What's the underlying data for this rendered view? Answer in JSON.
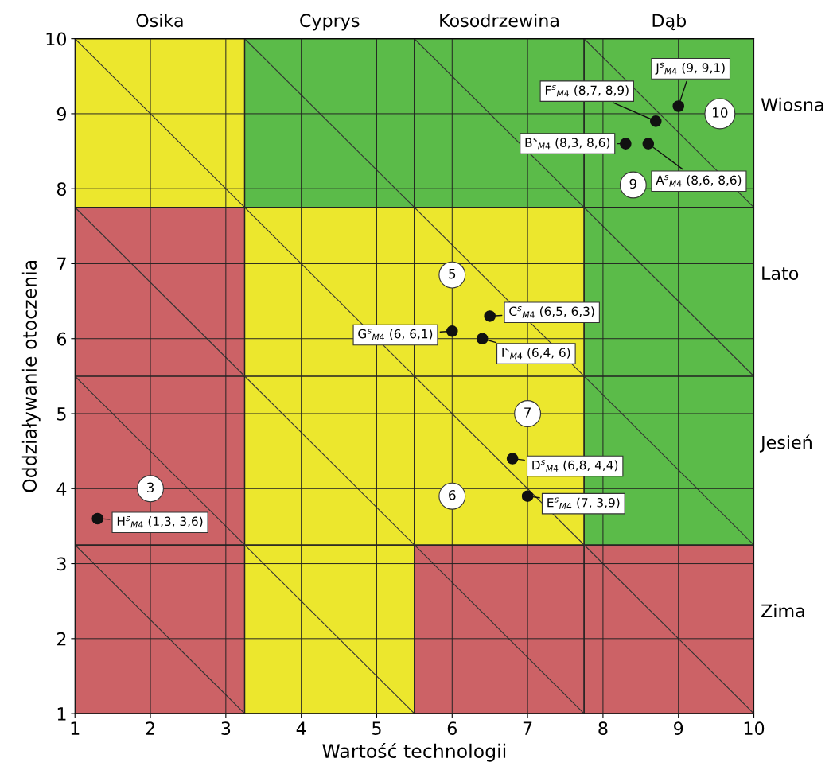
{
  "chart_data": {
    "type": "scatter",
    "xlabel": "Wartość technologii",
    "ylabel": "Oddziaływanie otoczenia",
    "xlim": [
      1,
      10
    ],
    "ylim": [
      1,
      10
    ],
    "xticks": [
      1,
      2,
      3,
      4,
      5,
      6,
      7,
      8,
      9,
      10
    ],
    "yticks": [
      1,
      2,
      3,
      4,
      5,
      6,
      7,
      8,
      9,
      10
    ],
    "grid": true,
    "legend": false,
    "series": [
      {
        "type": "line",
        "color": "#333333",
        "x": [
          1,
          3.25
        ],
        "values": [
          3.25,
          1
        ]
      },
      {
        "type": "line",
        "color": "#333333",
        "x": [
          1,
          5.5
        ],
        "values": [
          5.5,
          1
        ]
      },
      {
        "type": "line",
        "color": "#333333",
        "x": [
          1,
          7.75
        ],
        "values": [
          7.75,
          1
        ]
      },
      {
        "type": "line",
        "color": "#333333",
        "x": [
          1,
          10
        ],
        "values": [
          10,
          1
        ]
      },
      {
        "type": "line",
        "color": "#333333",
        "x": [
          3.25,
          10
        ],
        "values": [
          10,
          3.25
        ]
      },
      {
        "type": "line",
        "color": "#333333",
        "x": [
          5.5,
          10
        ],
        "values": [
          10,
          5.5
        ]
      },
      {
        "type": "line",
        "color": "#333333",
        "x": [
          7.75,
          10
        ],
        "values": [
          10,
          7.75
        ]
      },
      {
        "color": "#111111",
        "marker": "circle",
        "x": [
          1.3,
          6,
          6.4,
          6.5,
          6.8,
          7,
          8.3,
          8.6,
          8.7,
          9
        ],
        "values": [
          3.6,
          6.1,
          6,
          6.3,
          4.4,
          3.9,
          8.6,
          8.6,
          8.9,
          9.1
        ]
      }
    ],
    "annotations": [
      "Osika",
      "Cyprys",
      "Kosodrzewina",
      "Dąb",
      "Wiosna",
      "Lato",
      "Jesień",
      "Zima",
      {
        "text": "H$^{s}$$_{M4}$ (1,3, 3,6)",
        "x": 1.3,
        "y": 3.6
      },
      {
        "text": "G$^{s}$$_{M4}$ (6, 6,1)",
        "x": 6,
        "y": 6.1
      },
      {
        "text": "I$^{s}$$_{M4}$ (6,4, 6)",
        "x": 6.4,
        "y": 6
      },
      {
        "text": "C$^{s}$$_{M4}$ (6,5, 6,3)",
        "x": 6.5,
        "y": 6.3
      },
      {
        "text": "D$^{s}$$_{M4}$ (6,8, 4,4)",
        "x": 6.8,
        "y": 4.4
      },
      {
        "text": "E$^{s}$$_{M4}$ (7, 3,9)",
        "x": 7,
        "y": 3.9
      },
      {
        "text": "B$^{s}$$_{M4}$ (8,3, 8,6)",
        "x": 8.3,
        "y": 8.6
      },
      {
        "text": "A$^{s}$$_{M4}$ (8,6, 8,6)",
        "x": 8.6,
        "y": 8.6
      },
      {
        "text": "F$^{s}$$_{M4}$ (8,7, 8,9)",
        "x": 8.7,
        "y": 8.9
      },
      {
        "text": "J$^{s}$$_{M4}$ (9, 9,1)",
        "x": 9,
        "y": 9.1
      },
      {
        "text": "3",
        "x": 2,
        "y": 4
      },
      {
        "text": "5",
        "x": 6,
        "y": 6.85
      },
      {
        "text": "7",
        "x": 7,
        "y": 5
      },
      {
        "text": "6",
        "x": 6,
        "y": 3.9
      },
      {
        "text": "9",
        "x": 8.4,
        "y": 8.05
      },
      {
        "text": "10",
        "x": 9.55,
        "y": 9
      }
    ]
  }
}
